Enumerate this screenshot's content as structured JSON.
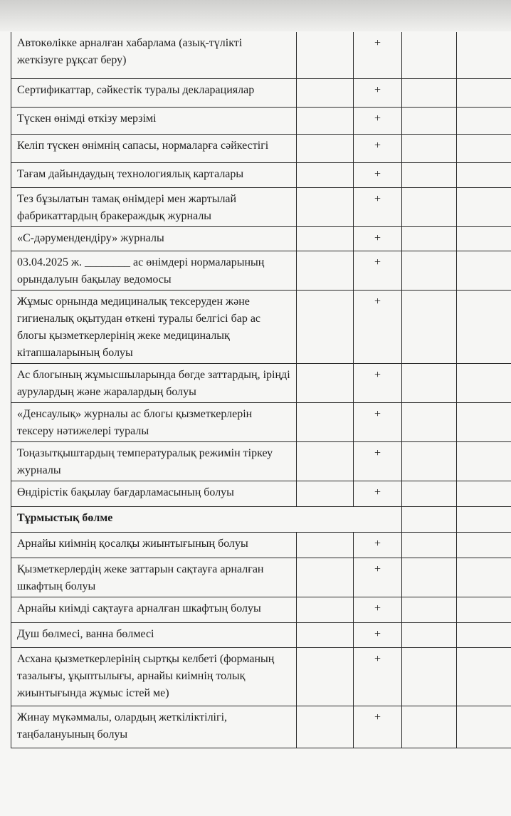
{
  "rows": [
    {
      "text": "Автокөлікке арналған хабарлама (азық-түлікті жеткізуге рұқсат беру)",
      "mark": "+"
    },
    {
      "text": "Сертификаттар, сәйкестік туралы декларациялар",
      "mark": "+"
    },
    {
      "text": "Түскен өнімді өткізу мерзімі",
      "mark": "+"
    },
    {
      "text": "Келіп түскен өнімнің сапасы, нормаларға сәйкестігі",
      "mark": "+"
    },
    {
      "text": "Тағам дайындаудың технологиялық карталары",
      "mark": "+"
    },
    {
      "text": "Тез бұзылатын тамақ өнімдері мен жартылай фабрикаттардың бракераждық журналы",
      "mark": "+"
    },
    {
      "text": "«С-дәрумендендіру» журналы",
      "mark": "+"
    },
    {
      "text": "03.04.2025 ж. ________ ас өнімдері нормаларының орындалуын бақылау ведомосы",
      "mark": "+"
    },
    {
      "text": "Жұмыс орнында медициналық тексеруден және гигиеналық оқытудан өткені туралы белгісі бар ас блогы қызметкерлерінің жеке медициналық кітапшаларының болуы",
      "mark": "+"
    },
    {
      "text": "Ас блогының жұмысшыларында бөгде заттардың, іріңді аурулардың және жаралардың болуы",
      "mark": "+"
    },
    {
      "text": "«Денсаулық» журналы ас блогы қызметкерлерін тексеру нәтижелері туралы",
      "mark": "+"
    },
    {
      "text": "Тоңазытқыштардың температуралық режимін тіркеу журналы",
      "mark": "+"
    },
    {
      "text": "Өндірістік бақылау бағдарламасының болуы",
      "mark": "+"
    },
    {
      "section": "Тұрмыстық бөлме"
    },
    {
      "text": "Арнайы киімнің қосалқы жиынтығының болуы",
      "mark": "+"
    },
    {
      "text": "Қызметкерлердің жеке заттарын сақтауға арналған шкафтың болуы",
      "mark": "+"
    },
    {
      "text": "Арнайы киімді сақтауға арналған шкафтың болуы",
      "mark": "+"
    },
    {
      "text": "Душ бөлмесі, ванна бөлмесі",
      "mark": "+"
    },
    {
      "text": "Асхана қызметкерлерінің сыртқы келбеті (форманың тазалығы, ұқыптылығы, арнайы киімнің толық жиынтығында жұмыс істей ме)",
      "mark": "+"
    },
    {
      "text": "Жинау мүкәммалы, олардың жеткіліктілігі, таңбалануының болуы",
      "mark": "+"
    }
  ]
}
